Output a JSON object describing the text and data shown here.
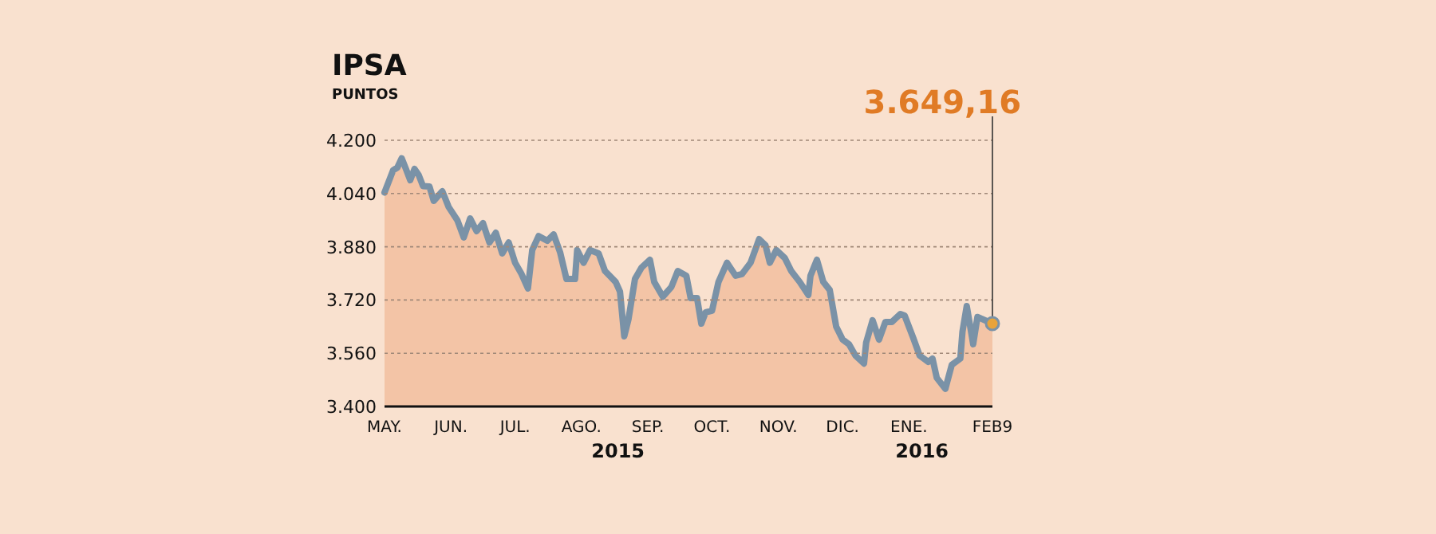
{
  "chart_data": {
    "type": "area",
    "title": "IPSA",
    "subtitle": "PUNTOS",
    "x": [
      "2015-05-01",
      "2015-05-05",
      "2015-05-07",
      "2015-05-09",
      "2015-05-11",
      "2015-05-13",
      "2015-05-15",
      "2015-05-17",
      "2015-05-19",
      "2015-05-22",
      "2015-05-24",
      "2015-05-28",
      "2015-05-31",
      "2015-06-04",
      "2015-06-07",
      "2015-06-10",
      "2015-06-13",
      "2015-06-16",
      "2015-06-19",
      "2015-06-22",
      "2015-06-25",
      "2015-06-28",
      "2015-07-01",
      "2015-07-04",
      "2015-07-07",
      "2015-07-09",
      "2015-07-12",
      "2015-07-16",
      "2015-07-19",
      "2015-07-22",
      "2015-07-25",
      "2015-07-29",
      "2015-07-30",
      "2015-08-02",
      "2015-08-05",
      "2015-08-09",
      "2015-08-12",
      "2015-08-17",
      "2015-08-19",
      "2015-08-21",
      "2015-08-23",
      "2015-08-26",
      "2015-08-29",
      "2015-09-02",
      "2015-09-04",
      "2015-09-08",
      "2015-09-12",
      "2015-09-15",
      "2015-09-19",
      "2015-09-21",
      "2015-09-24",
      "2015-09-26",
      "2015-09-28",
      "2015-10-01",
      "2015-10-04",
      "2015-10-08",
      "2015-10-12",
      "2015-10-15",
      "2015-10-19",
      "2015-10-23",
      "2015-10-26",
      "2015-10-28",
      "2015-10-31",
      "2015-11-04",
      "2015-11-07",
      "2015-11-11",
      "2015-11-15",
      "2015-11-16",
      "2015-11-19",
      "2015-11-22",
      "2015-11-25",
      "2015-11-28",
      "2015-12-01",
      "2015-12-04",
      "2015-12-07",
      "2015-12-11",
      "2015-12-12",
      "2015-12-15",
      "2015-12-18",
      "2015-12-21",
      "2015-12-24",
      "2015-12-28",
      "2015-12-30",
      "2016-01-03",
      "2016-01-06",
      "2016-01-10",
      "2016-01-12",
      "2016-01-14",
      "2016-01-18",
      "2016-01-21",
      "2016-01-25",
      "2016-01-26",
      "2016-01-28",
      "2016-01-31",
      "2016-02-02",
      "2016-02-09"
    ],
    "series": [
      {
        "color": "#f3c4a6",
        "values": [
          4043,
          4110,
          4118,
          4146,
          4114,
          4080,
          4114,
          4095,
          4062,
          4061,
          4018,
          4047,
          3999,
          3960,
          3908,
          3965,
          3927,
          3951,
          3893,
          3922,
          3860,
          3893,
          3832,
          3798,
          3755,
          3870,
          3912,
          3898,
          3917,
          3864,
          3783,
          3783,
          3870,
          3832,
          3870,
          3860,
          3807,
          3774,
          3745,
          3611,
          3663,
          3783,
          3817,
          3841,
          3774,
          3730,
          3759,
          3807,
          3793,
          3726,
          3726,
          3649,
          3683,
          3688,
          3774,
          3832,
          3793,
          3798,
          3832,
          3903,
          3884,
          3832,
          3870,
          3846,
          3807,
          3774,
          3735,
          3793,
          3841,
          3774,
          3750,
          3640,
          3601,
          3587,
          3553,
          3529,
          3592,
          3659,
          3601,
          3654,
          3654,
          3678,
          3673,
          3606,
          3553,
          3534,
          3544,
          3486,
          3453,
          3525,
          3544,
          3625,
          3702,
          3587,
          3669,
          3649.16
        ]
      },
      {
        "type": "line",
        "color": "#7a92a7",
        "values": [
          4043,
          4110,
          4118,
          4146,
          4114,
          4080,
          4114,
          4095,
          4062,
          4061,
          4018,
          4047,
          3999,
          3960,
          3908,
          3965,
          3927,
          3951,
          3893,
          3922,
          3860,
          3893,
          3832,
          3798,
          3755,
          3870,
          3912,
          3898,
          3917,
          3864,
          3783,
          3783,
          3870,
          3832,
          3870,
          3860,
          3807,
          3774,
          3745,
          3611,
          3663,
          3783,
          3817,
          3841,
          3774,
          3730,
          3759,
          3807,
          3793,
          3726,
          3726,
          3649,
          3683,
          3688,
          3774,
          3832,
          3793,
          3798,
          3832,
          3903,
          3884,
          3832,
          3870,
          3846,
          3807,
          3774,
          3735,
          3793,
          3841,
          3774,
          3750,
          3640,
          3601,
          3587,
          3553,
          3529,
          3592,
          3659,
          3601,
          3654,
          3654,
          3678,
          3673,
          3606,
          3553,
          3534,
          3544,
          3486,
          3453,
          3525,
          3544,
          3625,
          3702,
          3587,
          3669,
          3649.16
        ]
      }
    ],
    "xlim": [
      "2015-05-01",
      "2016-02-09"
    ],
    "xticks": [
      {
        "value": "2015-05-01",
        "label": "MAY."
      },
      {
        "value": "2015-06-01",
        "label": "JUN."
      },
      {
        "value": "2015-07-01",
        "label": "JUL."
      },
      {
        "value": "2015-08-01",
        "label": "AGO."
      },
      {
        "value": "2015-09-01",
        "label": "SEP."
      },
      {
        "value": "2015-10-01",
        "label": "OCT."
      },
      {
        "value": "2015-11-01",
        "label": "NOV."
      },
      {
        "value": "2015-12-01",
        "label": "DIC."
      },
      {
        "value": "2016-01-01",
        "label": "ENE."
      },
      {
        "value": "2016-02-09",
        "label": "FEB9"
      }
    ],
    "ylim": [
      3400,
      4200
    ],
    "yticks": [
      {
        "value": 3400,
        "label": "3.400"
      },
      {
        "value": 3560,
        "label": "3.560"
      },
      {
        "value": 3720,
        "label": "3.720"
      },
      {
        "value": 3880,
        "label": "3.880"
      },
      {
        "value": 4040,
        "label": "4.040"
      },
      {
        "value": 4200,
        "label": "4.200"
      }
    ],
    "grid": "y",
    "annotations": [
      "2015",
      "2016",
      "3.649,16"
    ]
  }
}
